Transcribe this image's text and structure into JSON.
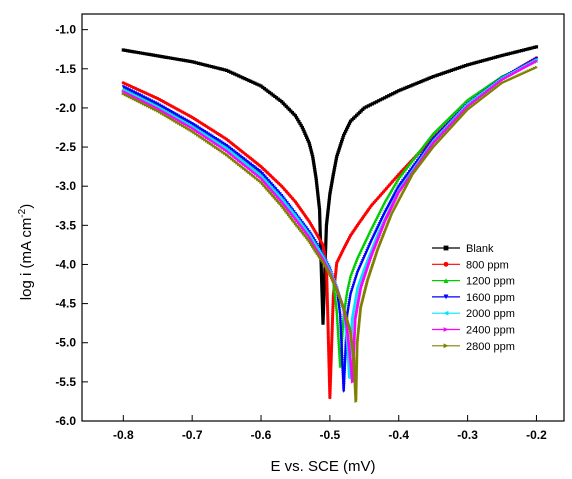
{
  "chart_data": {
    "type": "line",
    "title": "",
    "xlabel": "E vs. SCE (mV)",
    "ylabel_main": "log i (mA cm",
    "ylabel_sup": "-2",
    "ylabel_close": ")",
    "xlim": [
      -0.86,
      -0.16
    ],
    "ylim": [
      -6.0,
      -0.8
    ],
    "xticks": [
      -0.8,
      -0.7,
      -0.6,
      -0.5,
      -0.4,
      -0.3,
      -0.2
    ],
    "xtick_labels": [
      "-0.8",
      "-0.7",
      "-0.6",
      "-0.5",
      "-0.4",
      "-0.3",
      "-0.2"
    ],
    "yticks": [
      -6.0,
      -5.5,
      -5.0,
      -4.5,
      -4.0,
      -3.5,
      -3.0,
      -2.5,
      -2.0,
      -1.5,
      -1.0
    ],
    "ytick_labels": [
      "-6.0",
      "-5.5",
      "-5.0",
      "-4.5",
      "-4.0",
      "-3.5",
      "-3.0",
      "-2.5",
      "-2.0",
      "-1.5",
      "-1.0"
    ],
    "grid": false,
    "legend_position": "right-center",
    "series": [
      {
        "name": "Blank",
        "color": "#000000",
        "marker": "square",
        "x": [
          -0.8,
          -0.7,
          -0.65,
          -0.6,
          -0.57,
          -0.55,
          -0.54,
          -0.53,
          -0.525,
          -0.52,
          -0.515,
          -0.512,
          -0.51,
          -0.505,
          -0.5,
          -0.495,
          -0.49,
          -0.48,
          -0.47,
          -0.45,
          -0.4,
          -0.35,
          -0.3,
          -0.25,
          -0.2
        ],
        "y": [
          -1.26,
          -1.41,
          -1.52,
          -1.72,
          -1.92,
          -2.1,
          -2.25,
          -2.45,
          -2.62,
          -2.9,
          -3.3,
          -4.2,
          -4.75,
          -3.5,
          -3.1,
          -2.85,
          -2.62,
          -2.35,
          -2.17,
          -2.0,
          -1.78,
          -1.6,
          -1.45,
          -1.33,
          -1.22
        ]
      },
      {
        "name": "800 ppm",
        "color": "#ff0000",
        "marker": "circle",
        "x": [
          -0.8,
          -0.75,
          -0.7,
          -0.65,
          -0.6,
          -0.57,
          -0.55,
          -0.53,
          -0.52,
          -0.51,
          -0.505,
          -0.5,
          -0.495,
          -0.49,
          -0.48,
          -0.47,
          -0.46,
          -0.44,
          -0.42,
          -0.4,
          -0.35,
          -0.3,
          -0.25,
          -0.2
        ],
        "y": [
          -1.68,
          -1.88,
          -2.12,
          -2.4,
          -2.75,
          -3.0,
          -3.2,
          -3.45,
          -3.6,
          -3.75,
          -4.0,
          -5.7,
          -4.4,
          -3.98,
          -3.8,
          -3.63,
          -3.5,
          -3.25,
          -3.05,
          -2.85,
          -2.38,
          -1.95,
          -1.62,
          -1.36
        ]
      },
      {
        "name": "1200 ppm",
        "color": "#00cc00",
        "marker": "triangle-up",
        "x": [
          -0.8,
          -0.75,
          -0.7,
          -0.65,
          -0.6,
          -0.57,
          -0.55,
          -0.53,
          -0.52,
          -0.51,
          -0.5,
          -0.495,
          -0.49,
          -0.485,
          -0.48,
          -0.475,
          -0.47,
          -0.46,
          -0.44,
          -0.42,
          -0.4,
          -0.35,
          -0.3,
          -0.25,
          -0.2
        ],
        "y": [
          -1.76,
          -1.98,
          -2.22,
          -2.5,
          -2.85,
          -3.15,
          -3.38,
          -3.6,
          -3.75,
          -3.88,
          -4.05,
          -4.22,
          -4.6,
          -5.3,
          -4.65,
          -4.35,
          -4.15,
          -3.92,
          -3.55,
          -3.2,
          -2.9,
          -2.33,
          -1.9,
          -1.6,
          -1.4
        ]
      },
      {
        "name": "1600 ppm",
        "color": "#0000ff",
        "marker": "triangle-down",
        "x": [
          -0.8,
          -0.75,
          -0.7,
          -0.65,
          -0.6,
          -0.57,
          -0.55,
          -0.53,
          -0.52,
          -0.51,
          -0.5,
          -0.49,
          -0.485,
          -0.48,
          -0.475,
          -0.47,
          -0.46,
          -0.44,
          -0.42,
          -0.4,
          -0.35,
          -0.3,
          -0.25,
          -0.2
        ],
        "y": [
          -1.73,
          -1.95,
          -2.2,
          -2.48,
          -2.82,
          -3.12,
          -3.35,
          -3.58,
          -3.72,
          -3.88,
          -4.05,
          -4.3,
          -4.65,
          -5.62,
          -4.65,
          -4.38,
          -4.1,
          -3.7,
          -3.33,
          -3.0,
          -2.4,
          -1.95,
          -1.62,
          -1.37
        ]
      },
      {
        "name": "2000 ppm",
        "color": "#00e5ff",
        "marker": "triangle-left",
        "x": [
          -0.8,
          -0.75,
          -0.7,
          -0.65,
          -0.6,
          -0.57,
          -0.55,
          -0.53,
          -0.52,
          -0.51,
          -0.5,
          -0.49,
          -0.48,
          -0.475,
          -0.472,
          -0.468,
          -0.46,
          -0.45,
          -0.43,
          -0.4,
          -0.35,
          -0.3,
          -0.25,
          -0.2
        ],
        "y": [
          -1.77,
          -1.99,
          -2.24,
          -2.52,
          -2.87,
          -3.16,
          -3.38,
          -3.62,
          -3.76,
          -3.9,
          -4.08,
          -4.3,
          -4.6,
          -5.0,
          -5.45,
          -4.7,
          -4.3,
          -4.05,
          -3.6,
          -3.05,
          -2.42,
          -1.95,
          -1.62,
          -1.38
        ]
      },
      {
        "name": "2400 ppm",
        "color": "#ff00ff",
        "marker": "triangle-right",
        "x": [
          -0.8,
          -0.75,
          -0.7,
          -0.65,
          -0.6,
          -0.57,
          -0.55,
          -0.53,
          -0.52,
          -0.51,
          -0.5,
          -0.49,
          -0.48,
          -0.475,
          -0.47,
          -0.467,
          -0.463,
          -0.455,
          -0.44,
          -0.42,
          -0.4,
          -0.35,
          -0.3,
          -0.25,
          -0.2
        ],
        "y": [
          -1.79,
          -2.01,
          -2.26,
          -2.55,
          -2.9,
          -3.2,
          -3.42,
          -3.65,
          -3.8,
          -3.93,
          -4.1,
          -4.3,
          -4.55,
          -4.8,
          -5.2,
          -5.5,
          -4.7,
          -4.3,
          -3.9,
          -3.45,
          -3.08,
          -2.45,
          -1.98,
          -1.64,
          -1.4
        ]
      },
      {
        "name": "2800 ppm",
        "color": "#808000",
        "marker": "triangle-right",
        "x": [
          -0.8,
          -0.75,
          -0.7,
          -0.65,
          -0.6,
          -0.57,
          -0.55,
          -0.53,
          -0.52,
          -0.51,
          -0.5,
          -0.49,
          -0.48,
          -0.47,
          -0.465,
          -0.462,
          -0.46,
          -0.455,
          -0.445,
          -0.43,
          -0.41,
          -0.38,
          -0.35,
          -0.3,
          -0.25,
          -0.2
        ],
        "y": [
          -1.82,
          -2.04,
          -2.3,
          -2.6,
          -2.95,
          -3.25,
          -3.48,
          -3.7,
          -3.84,
          -3.97,
          -4.12,
          -4.32,
          -4.55,
          -4.85,
          -5.2,
          -5.75,
          -5.0,
          -4.55,
          -4.2,
          -3.8,
          -3.35,
          -2.85,
          -2.5,
          -2.02,
          -1.68,
          -1.48
        ]
      }
    ]
  }
}
